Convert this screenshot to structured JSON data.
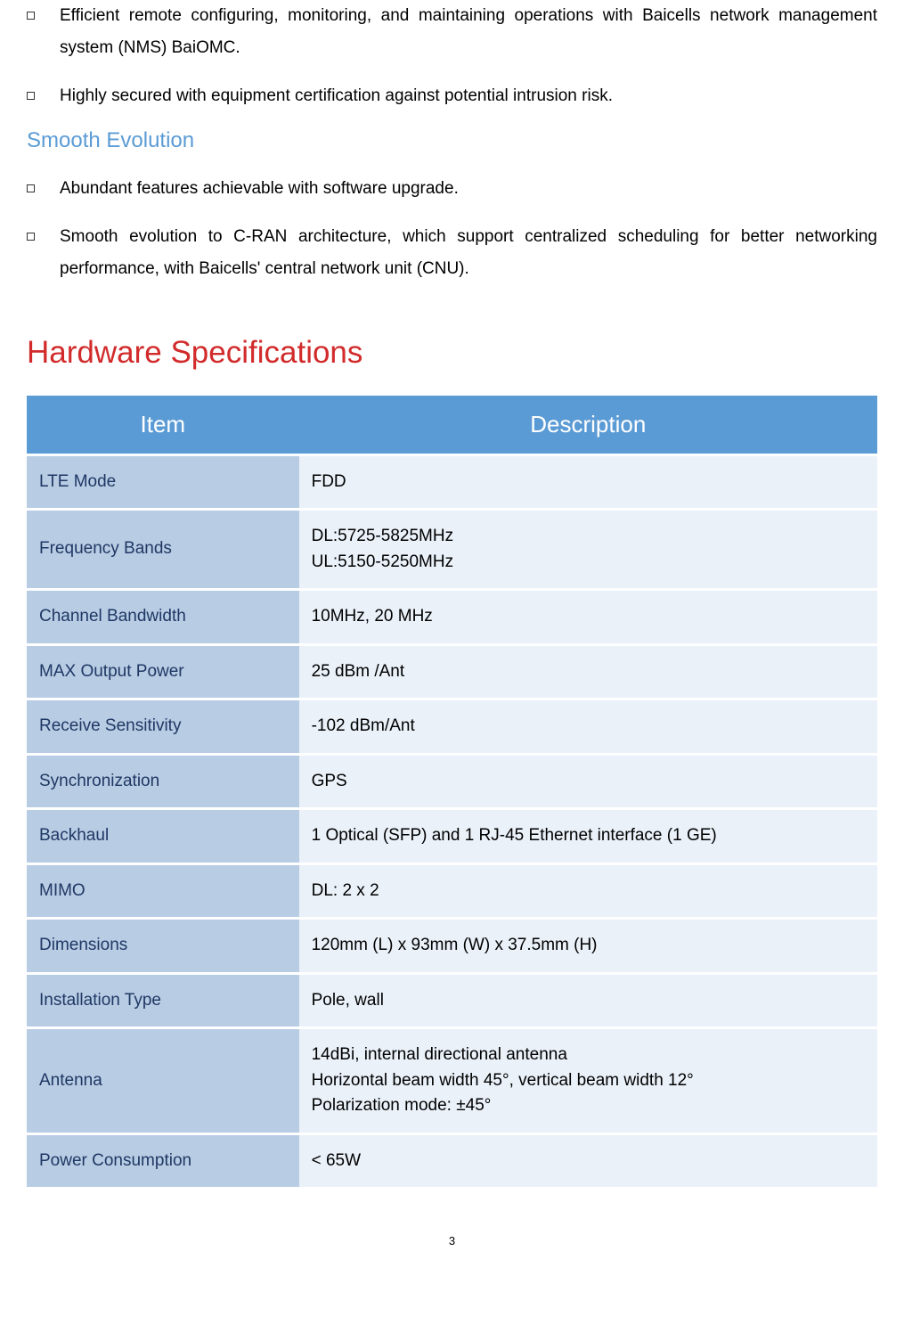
{
  "top_bullets": [
    "Efficient remote configuring, monitoring, and maintaining operations with Baicells network management system (NMS) BaiOMC.",
    "Highly secured with equipment certification against potential intrusion risk."
  ],
  "section_heading": "Smooth Evolution",
  "evolution_bullets": [
    "Abundant features achievable with software upgrade.",
    "Smooth evolution to C-RAN architecture, which support centralized scheduling for better networking performance, with Baicells' central network unit (CNU)."
  ],
  "main_heading": "Hardware Specifications",
  "table": {
    "headers": [
      "Item",
      "Description"
    ],
    "rows": [
      [
        "LTE Mode",
        "FDD"
      ],
      [
        "Frequency Bands",
        "DL:5725-5825MHz\nUL:5150-5250MHz"
      ],
      [
        "Channel Bandwidth",
        "10MHz, 20 MHz"
      ],
      [
        "MAX Output Power",
        "25 dBm /Ant"
      ],
      [
        "Receive Sensitivity",
        "-102 dBm/Ant"
      ],
      [
        "Synchronization",
        "GPS"
      ],
      [
        "Backhaul",
        "1 Optical (SFP) and 1 RJ-45 Ethernet interface (1 GE)"
      ],
      [
        "MIMO",
        "DL: 2 x 2"
      ],
      [
        "Dimensions",
        "120mm (L) x 93mm (W) x 37.5mm (H)"
      ],
      [
        "Installation Type",
        "Pole, wall"
      ],
      [
        "Antenna",
        "14dBi, internal directional antenna\nHorizontal beam width 45°, vertical beam width 12°\nPolarization mode: ±45°"
      ],
      [
        "Power Consumption",
        "< 65W"
      ]
    ]
  },
  "page_number": "3",
  "colors": {
    "heading_blue": "#5b9bd5",
    "heading_red": "#d22b2b",
    "table_header_bg": "#5b9bd5",
    "table_item_bg": "#b8cce4",
    "table_desc_bg": "#eaf1f9"
  }
}
